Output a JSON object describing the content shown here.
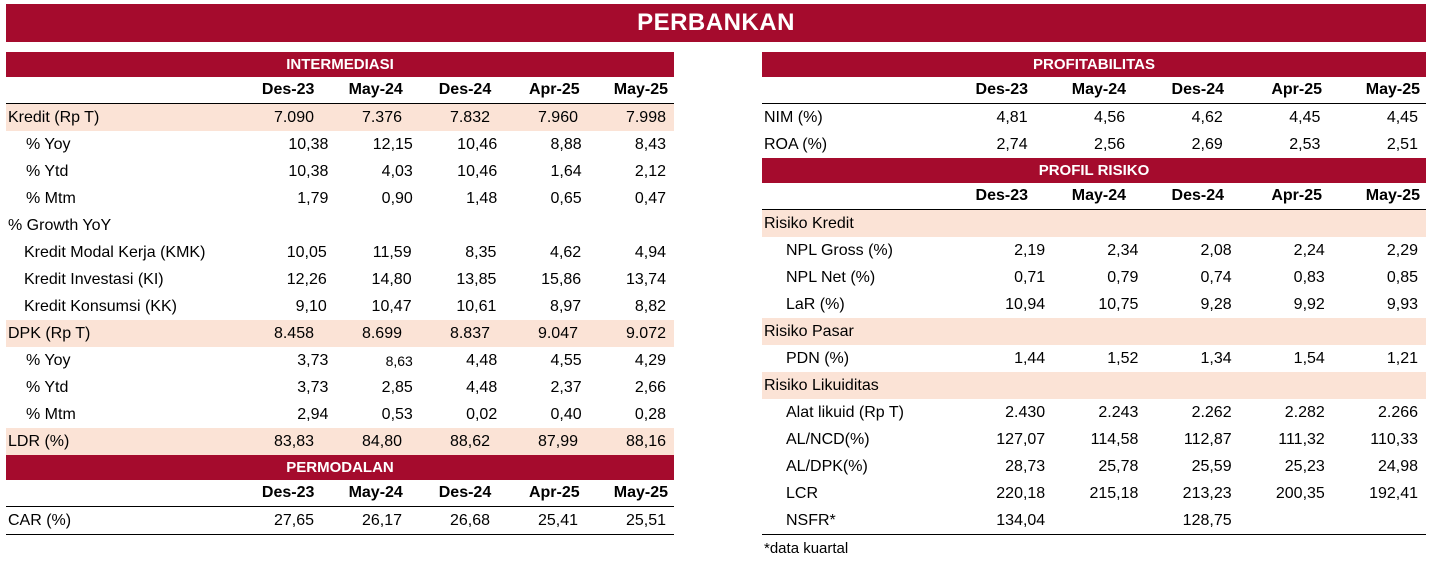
{
  "title": "PERBANKAN",
  "intermediasi": {
    "header": "INTERMEDIASI",
    "columns": [
      "Des-23",
      "May-24",
      "Des-24",
      "Apr-25",
      "May-25"
    ],
    "rows": [
      {
        "label": "Kredit (Rp T)",
        "values": [
          "7.090",
          "7.376",
          "7.832",
          "7.960",
          "7.998"
        ]
      },
      {
        "label": "% Yoy",
        "values": [
          "10,38",
          "12,15",
          "10,46",
          "8,88",
          "8,43"
        ]
      },
      {
        "label": "% Ytd",
        "values": [
          "10,38",
          "4,03",
          "10,46",
          "1,64",
          "2,12"
        ]
      },
      {
        "label": "% Mtm",
        "values": [
          "1,79",
          "0,90",
          "1,48",
          "0,65",
          "0,47"
        ]
      },
      {
        "label": "% Growth YoY",
        "values": [
          "",
          "",
          "",
          "",
          ""
        ]
      },
      {
        "label": "Kredit Modal Kerja (KMK)",
        "values": [
          "10,05",
          "11,59",
          "8,35",
          "4,62",
          "4,94"
        ]
      },
      {
        "label": "Kredit Investasi (KI)",
        "values": [
          "12,26",
          "14,80",
          "13,85",
          "15,86",
          "13,74"
        ]
      },
      {
        "label": "Kredit Konsumsi (KK)",
        "values": [
          "9,10",
          "10,47",
          "10,61",
          "8,97",
          "8,82"
        ]
      },
      {
        "label": "DPK (Rp T)",
        "values": [
          "8.458",
          "8.699",
          "8.837",
          "9.047",
          "9.072"
        ]
      },
      {
        "label": "% Yoy",
        "values": [
          "3,73",
          "8,63",
          "4,48",
          "4,55",
          "4,29"
        ]
      },
      {
        "label": "% Ytd",
        "values": [
          "3,73",
          "2,85",
          "4,48",
          "2,37",
          "2,66"
        ]
      },
      {
        "label": "% Mtm",
        "values": [
          "2,94",
          "0,53",
          "0,02",
          "0,40",
          "0,28"
        ]
      },
      {
        "label": "LDR (%)",
        "values": [
          "83,83",
          "84,80",
          "88,62",
          "87,99",
          "88,16"
        ]
      }
    ]
  },
  "permodalan": {
    "header": "PERMODALAN",
    "columns": [
      "Des-23",
      "May-24",
      "Des-24",
      "Apr-25",
      "May-25"
    ],
    "rows": [
      {
        "label": "CAR (%)",
        "values": [
          "27,65",
          "26,17",
          "26,68",
          "25,41",
          "25,51"
        ]
      }
    ]
  },
  "profitabilitas": {
    "header": "PROFITABILITAS",
    "columns": [
      "Des-23",
      "May-24",
      "Des-24",
      "Apr-25",
      "May-25"
    ],
    "rows": [
      {
        "label": "NIM (%)",
        "values": [
          "4,81",
          "4,56",
          "4,62",
          "4,45",
          "4,45"
        ]
      },
      {
        "label": "ROA (%)",
        "values": [
          "2,74",
          "2,56",
          "2,69",
          "2,53",
          "2,51"
        ]
      }
    ]
  },
  "profil_risiko": {
    "header": "PROFIL RISIKO",
    "columns": [
      "Des-23",
      "May-24",
      "Des-24",
      "Apr-25",
      "May-25"
    ],
    "rows": [
      {
        "label": "Risiko Kredit",
        "values": [
          "",
          "",
          "",
          "",
          ""
        ]
      },
      {
        "label": "NPL Gross (%)",
        "values": [
          "2,19",
          "2,34",
          "2,08",
          "2,24",
          "2,29"
        ]
      },
      {
        "label": "NPL Net (%)",
        "values": [
          "0,71",
          "0,79",
          "0,74",
          "0,83",
          "0,85"
        ]
      },
      {
        "label": "LaR (%)",
        "values": [
          "10,94",
          "10,75",
          "9,28",
          "9,92",
          "9,93"
        ]
      },
      {
        "label": "Risiko Pasar",
        "values": [
          "",
          "",
          "",
          "",
          ""
        ]
      },
      {
        "label": "PDN (%)",
        "values": [
          "1,44",
          "1,52",
          "1,34",
          "1,54",
          "1,21"
        ]
      },
      {
        "label": "Risiko Likuiditas",
        "values": [
          "",
          "",
          "",
          "",
          ""
        ]
      },
      {
        "label": "Alat likuid (Rp T)",
        "values": [
          "2.430",
          "2.243",
          "2.262",
          "2.282",
          "2.266"
        ]
      },
      {
        "label": "AL/NCD(%)",
        "values": [
          "127,07",
          "114,58",
          "112,87",
          "111,32",
          "110,33"
        ]
      },
      {
        "label": "AL/DPK(%)",
        "values": [
          "28,73",
          "25,78",
          "25,59",
          "25,23",
          "24,98"
        ]
      },
      {
        "label": "LCR",
        "values": [
          "220,18",
          "215,18",
          "213,23",
          "200,35",
          "192,41"
        ]
      },
      {
        "label": "NSFR*",
        "values": [
          "134,04",
          "",
          "128,75",
          "",
          ""
        ]
      }
    ]
  },
  "footnote": "*data kuartal"
}
